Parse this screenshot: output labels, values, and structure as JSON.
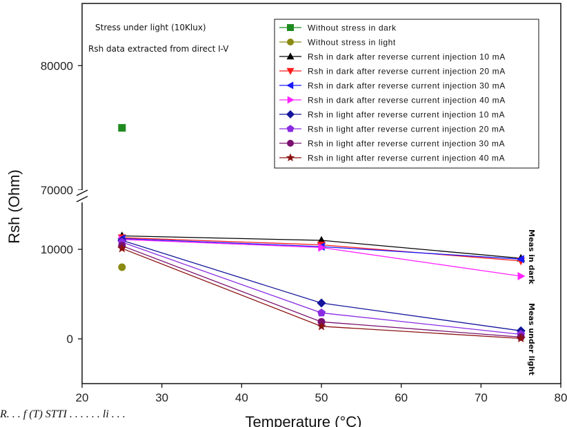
{
  "chart_data": {
    "type": "line",
    "xlabel": "Temperature (°C)",
    "ylabel": "Rsh (Ohm)",
    "xlim": [
      20,
      80
    ],
    "x_ticks": [
      "20",
      "30",
      "40",
      "50",
      "60",
      "70",
      "80"
    ],
    "y_segments": [
      {
        "range": [
          -5000,
          15000
        ],
        "ticks": [
          0,
          10000
        ],
        "tick_labels": [
          "0",
          "10000"
        ]
      },
      {
        "range": [
          69500,
          85000
        ],
        "ticks": [
          70000,
          80000
        ],
        "tick_labels": [
          "70000",
          "80000"
        ]
      }
    ],
    "axis_break": true,
    "grid": false,
    "legend_position": "top-right",
    "annotations": [
      "Stress under light (10Klux)",
      "Rsh data extracted from direct I-V",
      "Meas in dark",
      "Meas under light"
    ],
    "caption_partial": "R. . .  f (T) STTI  . . .  . . .  li  . . .",
    "series": [
      {
        "name": "Without stress in dark",
        "color": "#1f8a1f",
        "marker": "square",
        "x": [
          25
        ],
        "y": [
          75000
        ]
      },
      {
        "name": "Without stress in light",
        "color": "#8a8a12",
        "marker": "circle",
        "x": [
          25
        ],
        "y": [
          8000
        ]
      },
      {
        "name": "Rsh in dark after reverse current injection 10 mA",
        "color": "#000000",
        "marker": "triangle-up",
        "x": [
          25,
          50,
          75
        ],
        "y": [
          11500,
          11000,
          9000
        ]
      },
      {
        "name": "Rsh in dark after reverse current injection 20 mA",
        "color": "#ff1a1a",
        "marker": "triangle-down",
        "x": [
          25,
          50,
          75
        ],
        "y": [
          11300,
          10500,
          8700
        ]
      },
      {
        "name": "Rsh in dark after reverse current injection 30 mA",
        "color": "#1a1aff",
        "marker": "triangle-left",
        "x": [
          25,
          50,
          75
        ],
        "y": [
          11200,
          10300,
          8900
        ]
      },
      {
        "name": "Rsh in dark after reverse current injection 40 mA",
        "color": "#ff22ff",
        "marker": "triangle-right",
        "x": [
          25,
          50,
          75
        ],
        "y": [
          11100,
          10200,
          7000
        ]
      },
      {
        "name": "Rsh in light after reverse current injection 10 mA",
        "color": "#14149c",
        "marker": "diamond",
        "x": [
          25,
          50,
          75
        ],
        "y": [
          11000,
          4000,
          900
        ]
      },
      {
        "name": "Rsh in light after reverse current injection 20 mA",
        "color": "#8a2be2",
        "marker": "pentagon",
        "x": [
          25,
          50,
          75
        ],
        "y": [
          10800,
          2900,
          500
        ]
      },
      {
        "name": "Rsh in light after reverse current injection 30 mA",
        "color": "#7a1070",
        "marker": "circle",
        "x": [
          25,
          50,
          75
        ],
        "y": [
          10400,
          1900,
          200
        ]
      },
      {
        "name": "Rsh in light after reverse current injection 40 mA",
        "color": "#8b1010",
        "marker": "star",
        "x": [
          25,
          50,
          75
        ],
        "y": [
          10100,
          1400,
          50
        ]
      }
    ]
  }
}
